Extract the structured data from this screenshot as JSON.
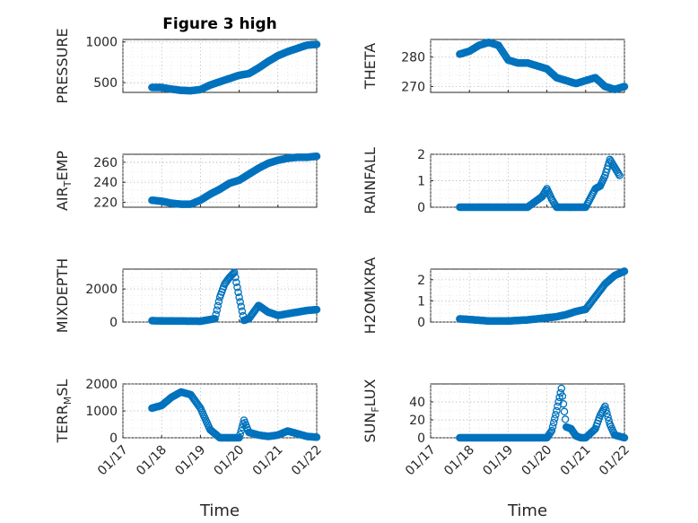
{
  "chart_data": [
    {
      "type": "scatter",
      "title": "Figure 3 high",
      "ylabel": "PRESSURE",
      "xlabel": "",
      "ylim": [
        380,
        1030
      ],
      "yticks": [
        500,
        1000
      ],
      "xlim": [
        "01/17",
        "01/22"
      ],
      "xticks": [
        "01/17",
        "01/18",
        "01/19",
        "01/20",
        "01/21",
        "01/22"
      ],
      "x": [
        "01/17 18:00",
        "01/18 00:00",
        "01/18 06:00",
        "01/18 12:00",
        "01/18 18:00",
        "01/19 00:00",
        "01/19 06:00",
        "01/19 12:00",
        "01/19 18:00",
        "01/20 00:00",
        "01/20 06:00",
        "01/20 12:00",
        "01/20 18:00",
        "01/21 00:00",
        "01/21 06:00",
        "01/21 12:00",
        "01/21 18:00",
        "01/22 00:00"
      ],
      "y": [
        440,
        440,
        420,
        405,
        400,
        415,
        470,
        510,
        550,
        590,
        610,
        680,
        760,
        830,
        880,
        920,
        960,
        970
      ]
    },
    {
      "type": "scatter",
      "title": "",
      "ylabel": "THETA",
      "xlabel": "",
      "ylim": [
        268,
        286
      ],
      "yticks": [
        270,
        280
      ],
      "xlim": [
        "01/17",
        "01/22"
      ],
      "xticks": [
        "01/17",
        "01/18",
        "01/19",
        "01/20",
        "01/21",
        "01/22"
      ],
      "x": [
        "01/17 18:00",
        "01/18 00:00",
        "01/18 06:00",
        "01/18 12:00",
        "01/18 18:00",
        "01/19 00:00",
        "01/19 06:00",
        "01/19 12:00",
        "01/19 18:00",
        "01/20 00:00",
        "01/20 06:00",
        "01/20 12:00",
        "01/20 18:00",
        "01/21 00:00",
        "01/21 06:00",
        "01/21 12:00",
        "01/21 18:00",
        "01/22 00:00"
      ],
      "y": [
        281,
        282,
        284,
        285,
        284,
        279,
        278,
        278,
        277,
        276,
        273,
        272,
        271,
        272,
        273,
        270,
        269,
        270
      ]
    },
    {
      "type": "scatter",
      "title": "",
      "ylabel": "AIR_TEMP",
      "xlabel": "",
      "ylim": [
        215,
        268
      ],
      "yticks": [
        220,
        240,
        260
      ],
      "xlim": [
        "01/17",
        "01/22"
      ],
      "xticks": [
        "01/17",
        "01/18",
        "01/19",
        "01/20",
        "01/21",
        "01/22"
      ],
      "x": [
        "01/17 18:00",
        "01/18 00:00",
        "01/18 06:00",
        "01/18 12:00",
        "01/18 18:00",
        "01/19 00:00",
        "01/19 06:00",
        "01/19 12:00",
        "01/19 18:00",
        "01/20 00:00",
        "01/20 06:00",
        "01/20 12:00",
        "01/20 18:00",
        "01/21 00:00",
        "01/21 06:00",
        "01/21 12:00",
        "01/21 18:00",
        "01/22 00:00"
      ],
      "y": [
        222,
        221,
        219,
        218,
        218,
        222,
        228,
        233,
        239,
        242,
        248,
        254,
        259,
        262,
        264,
        265,
        265,
        266
      ]
    },
    {
      "type": "scatter",
      "title": "",
      "ylabel": "RAINFALL",
      "xlabel": "",
      "ylim": [
        0,
        2
      ],
      "yticks": [
        0,
        1,
        2
      ],
      "xlim": [
        "01/17",
        "01/22"
      ],
      "xticks": [
        "01/17",
        "01/18",
        "01/19",
        "01/20",
        "01/21",
        "01/22"
      ],
      "x": [
        "01/17 18:00",
        "01/18 00:00",
        "01/18 12:00",
        "01/19 00:00",
        "01/19 12:00",
        "01/19 21:00",
        "01/20 00:00",
        "01/20 03:00",
        "01/20 06:00",
        "01/20 12:00",
        "01/21 00:00",
        "01/21 06:00",
        "01/21 09:00",
        "01/21 12:00",
        "01/21 15:00",
        "01/21 18:00",
        "01/21 21:00"
      ],
      "y": [
        0,
        0,
        0,
        0,
        0,
        0.4,
        0.7,
        0.3,
        0,
        0,
        0,
        0.7,
        0.8,
        1.2,
        1.8,
        1.5,
        1.2
      ]
    },
    {
      "type": "scatter",
      "title": "",
      "ylabel": "MIXDEPTH",
      "xlabel": "",
      "ylim": [
        0,
        3200
      ],
      "yticks": [
        0,
        2000
      ],
      "xlim": [
        "01/17",
        "01/22"
      ],
      "xticks": [
        "01/17",
        "01/18",
        "01/19",
        "01/20",
        "01/21",
        "01/22"
      ],
      "x": [
        "01/17 18:00",
        "01/18 00:00",
        "01/18 12:00",
        "01/19 00:00",
        "01/19 09:00",
        "01/19 12:00",
        "01/19 15:00",
        "01/19 18:00",
        "01/19 21:00",
        "01/20 00:00",
        "01/20 03:00",
        "01/20 06:00",
        "01/20 09:00",
        "01/20 12:00",
        "01/20 18:00",
        "01/21 00:00",
        "01/21 06:00",
        "01/21 12:00",
        "01/21 18:00",
        "01/22 00:00"
      ],
      "y": [
        80,
        70,
        60,
        50,
        200,
        1500,
        2300,
        2700,
        3000,
        1500,
        100,
        200,
        600,
        1000,
        600,
        400,
        500,
        600,
        700,
        750
      ]
    },
    {
      "type": "scatter",
      "title": "",
      "ylabel": "H2OMIXRA",
      "xlabel": "",
      "ylim": [
        0,
        2.5
      ],
      "yticks": [
        0,
        1,
        2
      ],
      "xlim": [
        "01/17",
        "01/22"
      ],
      "xticks": [
        "01/17",
        "01/18",
        "01/19",
        "01/20",
        "01/21",
        "01/22"
      ],
      "x": [
        "01/17 18:00",
        "01/18 00:00",
        "01/18 12:00",
        "01/19 00:00",
        "01/19 12:00",
        "01/20 00:00",
        "01/20 06:00",
        "01/20 12:00",
        "01/20 18:00",
        "01/21 00:00",
        "01/21 06:00",
        "01/21 12:00",
        "01/21 18:00",
        "01/22 00:00"
      ],
      "y": [
        0.15,
        0.12,
        0.05,
        0.05,
        0.1,
        0.2,
        0.25,
        0.35,
        0.5,
        0.6,
        1.2,
        1.8,
        2.2,
        2.4
      ]
    },
    {
      "type": "scatter",
      "title": "",
      "ylabel": "TERR_MSL",
      "xlabel": "Time",
      "ylim": [
        0,
        2000
      ],
      "yticks": [
        0,
        1000,
        2000
      ],
      "xlim": [
        "01/17",
        "01/22"
      ],
      "xticks": [
        "01/17",
        "01/18",
        "01/19",
        "01/20",
        "01/21",
        "01/22"
      ],
      "x": [
        "01/17 18:00",
        "01/18 00:00",
        "01/18 06:00",
        "01/18 12:00",
        "01/18 18:00",
        "01/19 00:00",
        "01/19 06:00",
        "01/19 12:00",
        "01/19 18:00",
        "01/20 00:00",
        "01/20 03:00",
        "01/20 06:00",
        "01/20 12:00",
        "01/20 18:00",
        "01/21 00:00",
        "01/21 06:00",
        "01/21 12:00",
        "01/21 18:00",
        "01/22 00:00"
      ],
      "y": [
        1100,
        1200,
        1500,
        1700,
        1600,
        1100,
        300,
        0,
        0,
        0,
        650,
        200,
        100,
        50,
        100,
        250,
        150,
        50,
        20
      ]
    },
    {
      "type": "scatter",
      "title": "",
      "ylabel": "SUN_FLUX",
      "xlabel": "Time",
      "ylim": [
        0,
        60
      ],
      "yticks": [
        0,
        20,
        40
      ],
      "xlim": [
        "01/17",
        "01/22"
      ],
      "xticks": [
        "01/17",
        "01/18",
        "01/19",
        "01/20",
        "01/21",
        "01/22"
      ],
      "x": [
        "01/17 18:00",
        "01/18 00:00",
        "01/18 12:00",
        "01/19 00:00",
        "01/19 12:00",
        "01/20 00:00",
        "01/20 03:00",
        "01/20 06:00",
        "01/20 09:00",
        "01/20 12:00",
        "01/20 15:00",
        "01/20 18:00",
        "01/20 21:00",
        "01/21 00:00",
        "01/21 06:00",
        "01/21 09:00",
        "01/21 12:00",
        "01/21 15:00",
        "01/21 18:00",
        "01/22 00:00"
      ],
      "y": [
        0,
        0,
        0,
        0,
        0,
        0,
        8,
        30,
        55,
        12,
        10,
        2,
        0,
        0,
        10,
        25,
        35,
        15,
        3,
        0
      ]
    }
  ],
  "colors": {
    "marker": "#0072BD",
    "axis": "#262626"
  }
}
